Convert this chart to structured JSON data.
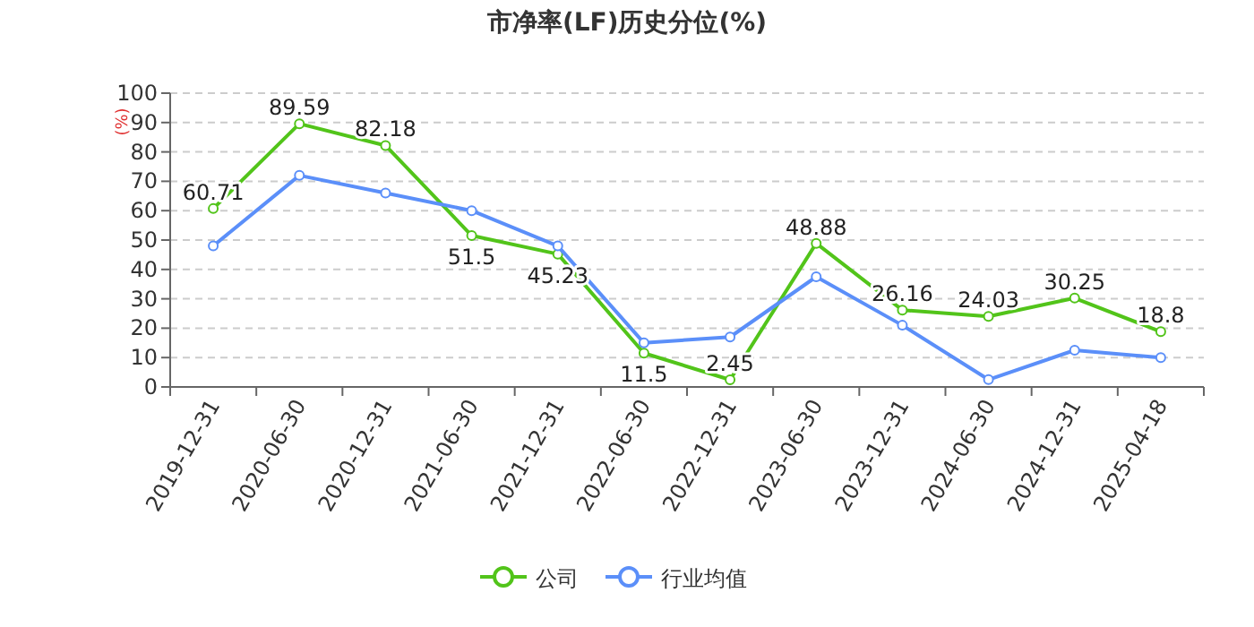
{
  "chart_data": {
    "type": "line",
    "title": "市净率(LF)历史分位(%)",
    "ylabel": "(%)",
    "categories": [
      "2019-12-31",
      "2020-06-30",
      "2020-12-31",
      "2021-06-30",
      "2021-12-31",
      "2022-06-30",
      "2022-12-31",
      "2023-06-30",
      "2023-12-31",
      "2024-06-30",
      "2024-12-31",
      "2025-04-18"
    ],
    "series": [
      {
        "name": "公司",
        "color": "#52c41a",
        "values": [
          60.71,
          89.59,
          82.18,
          51.5,
          45.23,
          11.5,
          2.45,
          48.88,
          26.16,
          24.03,
          30.25,
          18.8
        ],
        "value_labels": [
          "60.71",
          "89.59",
          "82.18",
          "51.5",
          "45.23",
          "11.5",
          "2.45",
          "48.88",
          "26.16",
          "24.03",
          "30.25",
          "18.8"
        ]
      },
      {
        "name": "行业均值",
        "color": "#5b8ff9",
        "values": [
          48,
          72,
          66,
          60,
          48,
          15,
          17,
          37.5,
          21,
          2.5,
          12.5,
          10
        ]
      }
    ],
    "ylim": [
      0,
      100
    ],
    "yticks": [
      0,
      10,
      20,
      30,
      40,
      50,
      60,
      70,
      80,
      90,
      100
    ],
    "grid": "y",
    "legend": "bottom",
    "marker": "circle",
    "line_style": "solid"
  }
}
